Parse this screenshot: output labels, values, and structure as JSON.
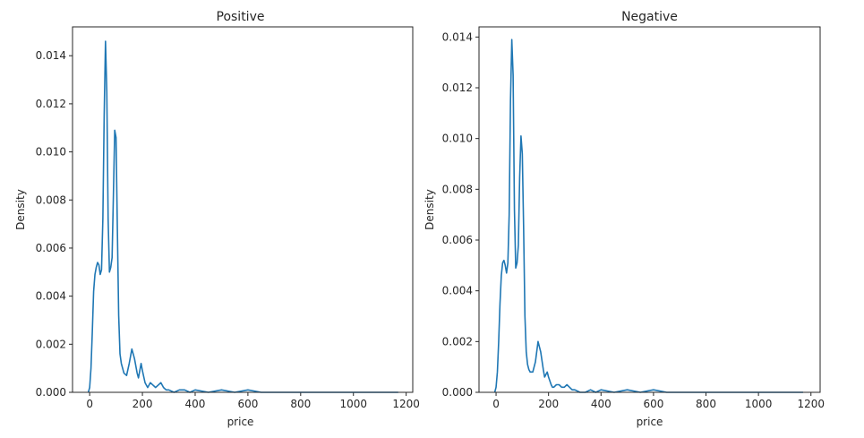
{
  "figure": {
    "line_color": "#1f77b4",
    "background": "#ffffff"
  },
  "chart_data": [
    {
      "type": "line",
      "title": "Positive",
      "xlabel": "price",
      "ylabel": "Density",
      "xlim": [
        -65,
        1225
      ],
      "ylim": [
        0,
        0.0152
      ],
      "x_ticks": [
        0,
        200,
        400,
        600,
        800,
        1000,
        1200
      ],
      "x_tick_labels": [
        "0",
        "200",
        "400",
        "600",
        "800",
        "1000",
        "1200"
      ],
      "y_ticks": [
        0,
        0.002,
        0.004,
        0.006,
        0.008,
        0.01,
        0.012,
        0.014
      ],
      "y_tick_labels": [
        "0.000",
        "0.002",
        "0.004",
        "0.006",
        "0.008",
        "0.010",
        "0.012",
        "0.014"
      ],
      "grid": false,
      "series": [
        {
          "x": [
            -5,
            0,
            5,
            10,
            15,
            20,
            25,
            30,
            35,
            40,
            45,
            50,
            55,
            60,
            65,
            70,
            75,
            80,
            85,
            90,
            95,
            100,
            105,
            110,
            115,
            120,
            125,
            130,
            140,
            150,
            160,
            170,
            180,
            185,
            190,
            195,
            200,
            210,
            215,
            220,
            230,
            240,
            250,
            260,
            270,
            280,
            290,
            300,
            320,
            340,
            360,
            380,
            400,
            450,
            500,
            550,
            600,
            650,
            700,
            800,
            900,
            1000,
            1100,
            1170
          ],
          "y": [
            0.0,
            0.0002,
            0.001,
            0.0025,
            0.0042,
            0.0049,
            0.0052,
            0.0054,
            0.0053,
            0.0049,
            0.0051,
            0.0072,
            0.0115,
            0.0146,
            0.0125,
            0.0072,
            0.005,
            0.0052,
            0.0056,
            0.0082,
            0.0109,
            0.0106,
            0.0068,
            0.0032,
            0.0016,
            0.0012,
            0.001,
            0.0008,
            0.0007,
            0.0012,
            0.0018,
            0.0014,
            0.0008,
            0.0006,
            0.0009,
            0.0012,
            0.0009,
            0.0004,
            0.0003,
            0.0002,
            0.0004,
            0.0003,
            0.0002,
            0.0003,
            0.0004,
            0.0002,
            0.0001,
            0.0001,
            0.0,
            0.0001,
            0.0001,
            0.0,
            0.0001,
            0.0,
            0.0001,
            0.0,
            0.0001,
            0.0,
            0.0,
            0.0,
            0.0,
            0.0,
            0.0,
            0.0
          ]
        }
      ]
    },
    {
      "type": "line",
      "title": "Negative",
      "xlabel": "price",
      "ylabel": "Density",
      "xlim": [
        -65,
        1235
      ],
      "ylim": [
        0,
        0.0144
      ],
      "x_ticks": [
        0,
        200,
        400,
        600,
        800,
        1000,
        1200
      ],
      "x_tick_labels": [
        "0",
        "200",
        "400",
        "600",
        "800",
        "1000",
        "1200"
      ],
      "y_ticks": [
        0,
        0.002,
        0.004,
        0.006,
        0.008,
        0.01,
        0.012,
        0.014
      ],
      "y_tick_labels": [
        "0.000",
        "0.002",
        "0.004",
        "0.006",
        "0.008",
        "0.010",
        "0.012",
        "0.014"
      ],
      "grid": false,
      "series": [
        {
          "x": [
            -5,
            0,
            5,
            10,
            15,
            20,
            25,
            30,
            35,
            40,
            45,
            50,
            55,
            60,
            65,
            70,
            75,
            80,
            85,
            90,
            95,
            100,
            105,
            110,
            115,
            120,
            125,
            130,
            140,
            150,
            160,
            170,
            180,
            185,
            190,
            195,
            200,
            210,
            215,
            220,
            230,
            240,
            250,
            260,
            270,
            280,
            290,
            300,
            320,
            340,
            360,
            380,
            400,
            450,
            500,
            550,
            600,
            650,
            700,
            800,
            900,
            1000,
            1100,
            1170
          ],
          "y": [
            0.0,
            0.0002,
            0.0008,
            0.002,
            0.0035,
            0.0046,
            0.0051,
            0.0052,
            0.005,
            0.0047,
            0.0051,
            0.007,
            0.0115,
            0.0139,
            0.0125,
            0.0072,
            0.0049,
            0.0051,
            0.0058,
            0.0085,
            0.0101,
            0.0094,
            0.0065,
            0.003,
            0.0016,
            0.0011,
            0.0009,
            0.0008,
            0.0008,
            0.0012,
            0.002,
            0.0016,
            0.0009,
            0.0006,
            0.0007,
            0.0008,
            0.0006,
            0.0003,
            0.0002,
            0.0002,
            0.0003,
            0.0003,
            0.0002,
            0.0002,
            0.0003,
            0.0002,
            0.0001,
            0.0001,
            0.0,
            0.0,
            0.0001,
            0.0,
            0.0001,
            0.0,
            0.0001,
            0.0,
            0.0001,
            0.0,
            0.0,
            0.0,
            0.0,
            0.0,
            0.0,
            0.0
          ]
        }
      ]
    }
  ]
}
